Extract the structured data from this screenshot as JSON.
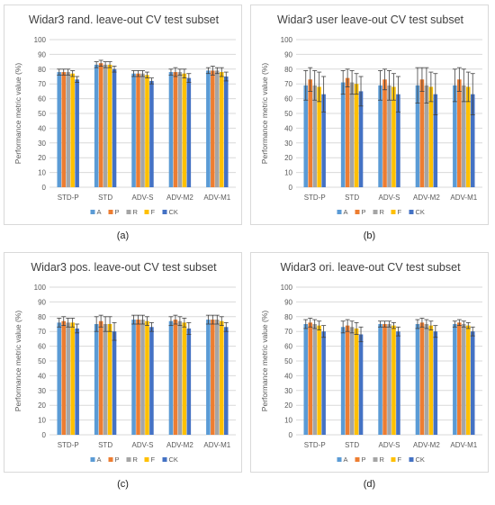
{
  "legend": [
    "A",
    "P",
    "R",
    "F",
    "CK"
  ],
  "colors": [
    "#5b9bd5",
    "#ed7d31",
    "#a5a5a5",
    "#ffc000",
    "#4472c4"
  ],
  "chart_data": [
    {
      "type": "bar",
      "title": "Widar3 rand. leave-out CV test subset",
      "ylabel": "Performance metric value (%)",
      "ylim": [
        0,
        100
      ],
      "yticks": [
        0,
        10,
        20,
        30,
        40,
        50,
        60,
        70,
        80,
        90,
        100
      ],
      "categories": [
        "STD-P",
        "STD",
        "ADV-S",
        "ADV-M2",
        "ADV-M1"
      ],
      "grid": true,
      "legend_position": "bottom",
      "caption": "(a)",
      "series": [
        {
          "name": "A",
          "values": [
            78,
            83,
            77,
            78,
            79
          ],
          "errors": [
            2,
            2,
            2,
            2,
            2
          ]
        },
        {
          "name": "P",
          "values": [
            78,
            84,
            77,
            78,
            79
          ],
          "errors": [
            2,
            2,
            2,
            3,
            3
          ]
        },
        {
          "name": "R",
          "values": [
            78,
            83,
            77,
            78,
            79
          ],
          "errors": [
            2,
            2,
            2,
            2,
            2
          ]
        },
        {
          "name": "F",
          "values": [
            77,
            83,
            76,
            77,
            78
          ],
          "errors": [
            2,
            2,
            2,
            3,
            3
          ]
        },
        {
          "name": "CK",
          "values": [
            73,
            80,
            72,
            74,
            75
          ],
          "errors": [
            2,
            2,
            2,
            3,
            3
          ]
        }
      ]
    },
    {
      "type": "bar",
      "title": "Widar3 user leave-out CV test subset",
      "ylabel": "Performance metric value (%)",
      "ylim": [
        0,
        100
      ],
      "yticks": [
        0,
        10,
        20,
        30,
        40,
        50,
        60,
        70,
        80,
        90,
        100
      ],
      "categories": [
        "STD-P",
        "STD",
        "ADV-S",
        "ADV-M2",
        "ADV-M1"
      ],
      "grid": true,
      "legend_position": "bottom",
      "caption": "(b)",
      "series": [
        {
          "name": "A",
          "values": [
            69,
            71,
            69,
            69,
            69
          ],
          "errors": [
            10,
            8,
            10,
            12,
            11
          ]
        },
        {
          "name": "P",
          "values": [
            73,
            74,
            73,
            73,
            73
          ],
          "errors": [
            8,
            6,
            7,
            8,
            8
          ]
        },
        {
          "name": "R",
          "values": [
            69,
            71,
            69,
            69,
            69
          ],
          "errors": [
            10,
            8,
            10,
            12,
            11
          ]
        },
        {
          "name": "F",
          "values": [
            68,
            70,
            68,
            68,
            68
          ],
          "errors": [
            10,
            7,
            9,
            10,
            10
          ]
        },
        {
          "name": "CK",
          "values": [
            63,
            65,
            63,
            63,
            63
          ],
          "errors": [
            12,
            10,
            12,
            14,
            14
          ]
        }
      ]
    },
    {
      "type": "bar",
      "title": "Widar3 pos. leave-out CV test subset",
      "ylabel": "Performance metric value (%)",
      "ylim": [
        0,
        100
      ],
      "yticks": [
        0,
        10,
        20,
        30,
        40,
        50,
        60,
        70,
        80,
        90,
        100
      ],
      "categories": [
        "STD-P",
        "STD",
        "ADV-S",
        "ADV-M2",
        "ADV-M1"
      ],
      "grid": true,
      "legend_position": "bottom",
      "caption": "(c)",
      "series": [
        {
          "name": "A",
          "values": [
            76,
            75,
            78,
            77,
            78
          ],
          "errors": [
            3,
            5,
            3,
            3,
            3
          ]
        },
        {
          "name": "P",
          "values": [
            77,
            77,
            78,
            78,
            78
          ],
          "errors": [
            3,
            4,
            3,
            3,
            3
          ]
        },
        {
          "name": "R",
          "values": [
            76,
            75,
            78,
            77,
            78
          ],
          "errors": [
            3,
            5,
            3,
            3,
            3
          ]
        },
        {
          "name": "F",
          "values": [
            76,
            75,
            77,
            76,
            77
          ],
          "errors": [
            3,
            5,
            3,
            3,
            3
          ]
        },
        {
          "name": "CK",
          "values": [
            72,
            70,
            73,
            72,
            73
          ],
          "errors": [
            3,
            6,
            3,
            4,
            3
          ]
        }
      ]
    },
    {
      "type": "bar",
      "title": "Widar3 ori. leave-out CV test subset",
      "ylabel": "Performance metric value (%)",
      "ylim": [
        0,
        100
      ],
      "yticks": [
        0,
        10,
        20,
        30,
        40,
        50,
        60,
        70,
        80,
        90,
        100
      ],
      "categories": [
        "STD-P",
        "STD",
        "ADV-S",
        "ADV-M2",
        "ADV-M1"
      ],
      "grid": true,
      "legend_position": "bottom",
      "caption": "(d)",
      "series": [
        {
          "name": "A",
          "values": [
            75,
            73,
            75,
            75,
            75
          ],
          "errors": [
            3,
            4,
            2,
            3,
            2
          ]
        },
        {
          "name": "P",
          "values": [
            76,
            74,
            75,
            76,
            76
          ],
          "errors": [
            3,
            4,
            2,
            3,
            2
          ]
        },
        {
          "name": "R",
          "values": [
            75,
            73,
            75,
            75,
            75
          ],
          "errors": [
            3,
            4,
            2,
            3,
            2
          ]
        },
        {
          "name": "F",
          "values": [
            74,
            72,
            74,
            74,
            74
          ],
          "errors": [
            3,
            4,
            2,
            3,
            2
          ]
        },
        {
          "name": "CK",
          "values": [
            70,
            68,
            70,
            70,
            70
          ],
          "errors": [
            4,
            5,
            3,
            4,
            3
          ]
        }
      ]
    }
  ]
}
